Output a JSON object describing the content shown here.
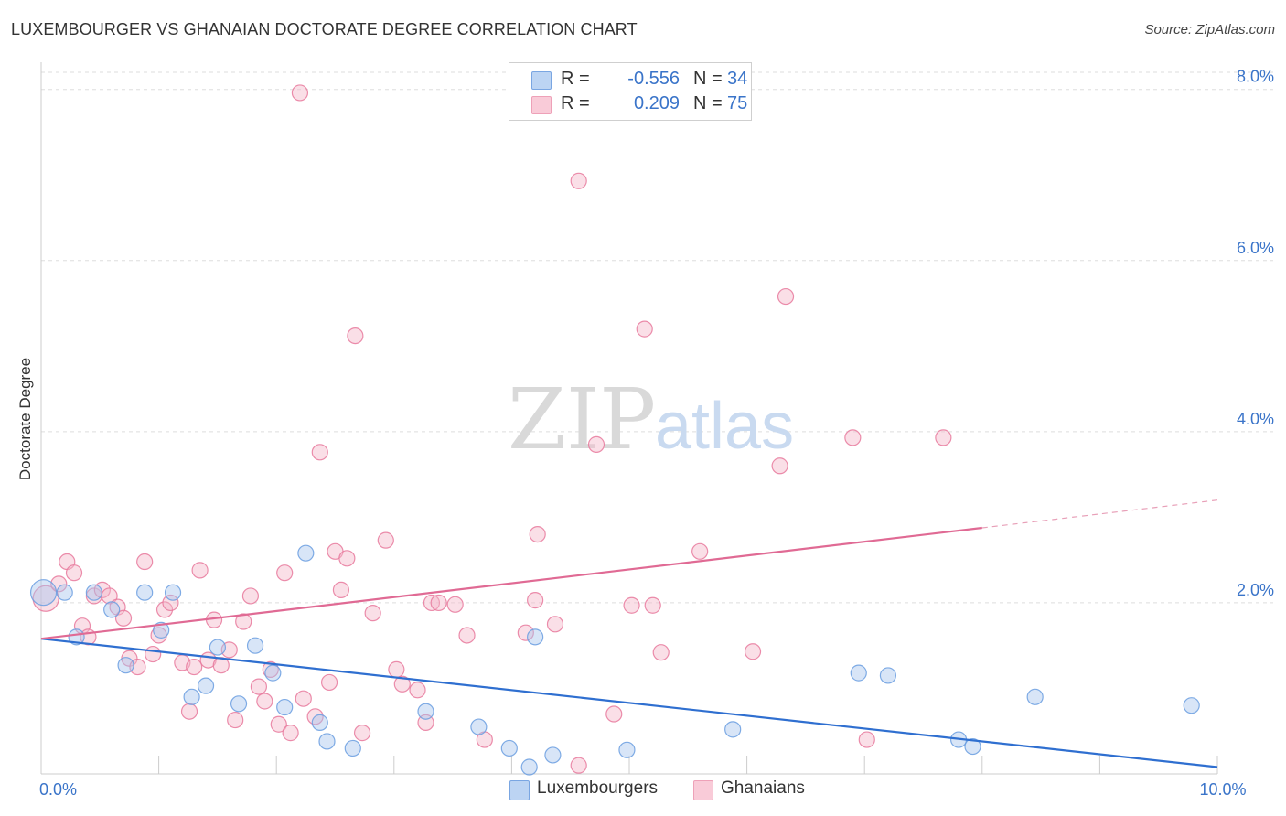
{
  "title": "LUXEMBOURGER VS GHANAIAN DOCTORATE DEGREE CORRELATION CHART",
  "source": "Source: ZipAtlas.com",
  "watermark": {
    "zip": "ZIP",
    "atlas": "atlas"
  },
  "legend": {
    "rows": [
      {
        "r_label": "R =",
        "r_value": "-0.556",
        "n_label": "N =",
        "n_value": "34",
        "color": "#a9c6ee"
      },
      {
        "r_label": "R =",
        "r_value": "0.209",
        "n_label": "N =",
        "n_value": "75",
        "color": "#f5b8c9"
      }
    ]
  },
  "bottom_legend": [
    {
      "label": "Luxembourgers",
      "color": "#a9c6ee"
    },
    {
      "label": "Ghanaians",
      "color": "#f5b8c9"
    }
  ],
  "chart_data": {
    "type": "scatter",
    "title": "LUXEMBOURGER VS GHANAIAN DOCTORATE DEGREE CORRELATION CHART",
    "xlabel": "",
    "ylabel": "Doctorate Degree",
    "xlim": [
      0,
      10
    ],
    "ylim": [
      0,
      8.2
    ],
    "x_tick_labels": [
      {
        "value": 0,
        "label": "0.0%"
      },
      {
        "value": 10,
        "label": "10.0%"
      }
    ],
    "y_tick_labels": [
      {
        "value": 2,
        "label": "2.0%"
      },
      {
        "value": 4,
        "label": "4.0%"
      },
      {
        "value": 6,
        "label": "6.0%"
      },
      {
        "value": 8,
        "label": "8.0%"
      }
    ],
    "x_minor_ticks": [
      1,
      2,
      3,
      4,
      5,
      6,
      7,
      8,
      9,
      10
    ],
    "grid": true,
    "series": [
      {
        "name": "Luxembourgers",
        "color": "#6a9ee0",
        "fill": "#a9c6ee",
        "points": [
          [
            0.02,
            2.12
          ],
          [
            0.2,
            2.12
          ],
          [
            0.3,
            1.6
          ],
          [
            0.45,
            2.12
          ],
          [
            0.6,
            1.92
          ],
          [
            0.72,
            1.27
          ],
          [
            0.88,
            2.12
          ],
          [
            1.02,
            1.68
          ],
          [
            1.12,
            2.12
          ],
          [
            1.28,
            0.9
          ],
          [
            1.4,
            1.03
          ],
          [
            1.5,
            1.48
          ],
          [
            1.68,
            0.82
          ],
          [
            1.82,
            1.5
          ],
          [
            1.97,
            1.18
          ],
          [
            2.07,
            0.78
          ],
          [
            2.25,
            2.58
          ],
          [
            2.37,
            0.6
          ],
          [
            2.43,
            0.38
          ],
          [
            2.65,
            0.3
          ],
          [
            3.27,
            0.73
          ],
          [
            3.72,
            0.55
          ],
          [
            3.98,
            0.3
          ],
          [
            4.15,
            0.08
          ],
          [
            4.2,
            1.6
          ],
          [
            4.35,
            0.22
          ],
          [
            4.98,
            0.28
          ],
          [
            5.88,
            0.52
          ],
          [
            6.95,
            1.18
          ],
          [
            7.2,
            1.15
          ],
          [
            7.8,
            0.4
          ],
          [
            7.92,
            0.32
          ],
          [
            8.45,
            0.9
          ],
          [
            9.78,
            0.8
          ]
        ],
        "trend": {
          "x": [
            0,
            10
          ],
          "y": [
            1.58,
            0.08
          ],
          "solid_to": 10
        }
      },
      {
        "name": "Ghanaians",
        "color": "#e8799c",
        "fill": "#f5b8c9",
        "points": [
          [
            0.04,
            2.05
          ],
          [
            0.15,
            2.22
          ],
          [
            0.22,
            2.48
          ],
          [
            0.28,
            2.35
          ],
          [
            0.35,
            1.73
          ],
          [
            0.4,
            1.6
          ],
          [
            0.45,
            2.08
          ],
          [
            0.52,
            2.15
          ],
          [
            0.58,
            2.08
          ],
          [
            0.65,
            1.95
          ],
          [
            0.7,
            1.82
          ],
          [
            0.75,
            1.35
          ],
          [
            0.82,
            1.25
          ],
          [
            0.88,
            2.48
          ],
          [
            0.95,
            1.4
          ],
          [
            1.0,
            1.62
          ],
          [
            1.05,
            1.92
          ],
          [
            1.1,
            2.0
          ],
          [
            1.2,
            1.3
          ],
          [
            1.26,
            0.73
          ],
          [
            1.3,
            1.25
          ],
          [
            1.35,
            2.38
          ],
          [
            1.42,
            1.33
          ],
          [
            1.47,
            1.8
          ],
          [
            1.53,
            1.27
          ],
          [
            1.6,
            1.45
          ],
          [
            1.65,
            0.63
          ],
          [
            1.72,
            1.78
          ],
          [
            1.78,
            2.08
          ],
          [
            1.85,
            1.02
          ],
          [
            1.9,
            0.85
          ],
          [
            1.95,
            1.22
          ],
          [
            2.02,
            0.58
          ],
          [
            2.07,
            2.35
          ],
          [
            2.12,
            0.48
          ],
          [
            2.2,
            7.96
          ],
          [
            2.23,
            0.88
          ],
          [
            2.33,
            0.67
          ],
          [
            2.37,
            3.76
          ],
          [
            2.45,
            1.07
          ],
          [
            2.5,
            2.6
          ],
          [
            2.55,
            2.15
          ],
          [
            2.6,
            2.52
          ],
          [
            2.67,
            5.12
          ],
          [
            2.73,
            0.48
          ],
          [
            2.82,
            1.88
          ],
          [
            2.93,
            2.73
          ],
          [
            3.02,
            1.22
          ],
          [
            3.07,
            1.05
          ],
          [
            3.2,
            0.98
          ],
          [
            3.27,
            0.6
          ],
          [
            3.32,
            2.0
          ],
          [
            3.38,
            2.0
          ],
          [
            3.52,
            1.98
          ],
          [
            3.62,
            1.62
          ],
          [
            3.77,
            0.4
          ],
          [
            4.12,
            1.65
          ],
          [
            4.2,
            2.03
          ],
          [
            4.22,
            2.8
          ],
          [
            4.37,
            1.75
          ],
          [
            4.57,
            6.93
          ],
          [
            4.57,
            0.1
          ],
          [
            4.72,
            3.85
          ],
          [
            4.87,
            0.7
          ],
          [
            5.02,
            1.97
          ],
          [
            5.13,
            5.2
          ],
          [
            5.2,
            1.97
          ],
          [
            5.27,
            1.42
          ],
          [
            5.6,
            2.6
          ],
          [
            6.05,
            1.43
          ],
          [
            6.28,
            3.6
          ],
          [
            6.33,
            5.58
          ],
          [
            6.9,
            3.93
          ],
          [
            7.02,
            0.4
          ],
          [
            7.67,
            3.93
          ]
        ],
        "trend": {
          "x": [
            0,
            10
          ],
          "y": [
            1.58,
            3.2
          ],
          "solid_to": 8.0
        }
      }
    ]
  }
}
